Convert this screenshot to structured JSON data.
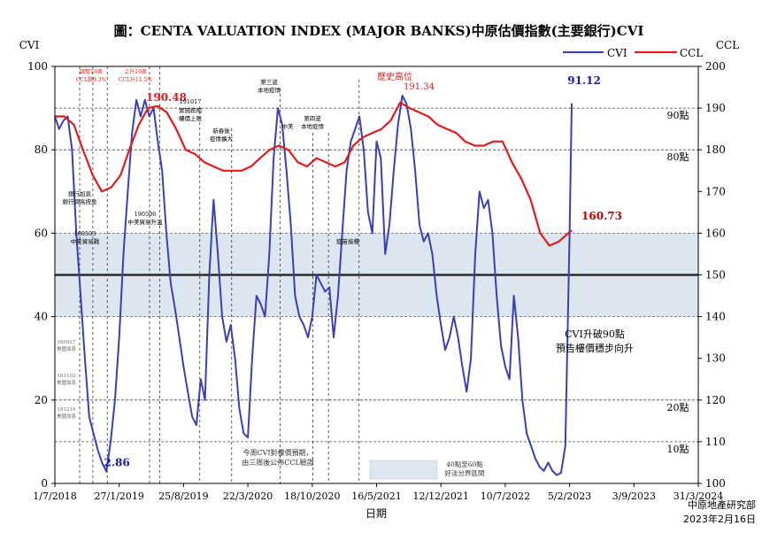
{
  "chart_data": {
    "type": "line",
    "title": "圖：CENTA VALUATION INDEX (MAJOR BANKS)中原估價指數(主要銀行)CVI",
    "xlabel": "日期",
    "ylabel_left": "CVI",
    "ylabel_right": "CCL",
    "ylim_left": [
      0,
      100
    ],
    "ylim_right": [
      100,
      200
    ],
    "yticks_left": [
      "0",
      "20",
      "40",
      "60",
      "80",
      "100"
    ],
    "yticks_right": [
      "100",
      "110",
      "120",
      "130",
      "140",
      "150",
      "160",
      "170",
      "180",
      "190",
      "200"
    ],
    "x_ticks": [
      "1/7/2018",
      "27/1/2019",
      "25/8/2019",
      "22/3/2020",
      "18/10/2020",
      "16/5/2021",
      "12/12/2021",
      "10/7/2022",
      "5/2/2023",
      "3/9/2023",
      "31/3/2024"
    ],
    "legend": {
      "position": "top-right",
      "cvi": "CVI",
      "ccl": "CCL"
    },
    "colors": {
      "cvi": "#3b3fb3",
      "ccl": "#e01b1b",
      "band": "#dde6f0",
      "midline": "#2b2b2b"
    },
    "band": {
      "from": 40,
      "to": 60,
      "midline": 50
    },
    "ref_lines": [
      {
        "value": 90,
        "label": "90點"
      },
      {
        "value": 80,
        "label": "80點"
      },
      {
        "value": 20,
        "label": "20點"
      },
      {
        "value": 10,
        "label": "10點"
      }
    ],
    "series": [
      {
        "name": "CVI",
        "axis": "left",
        "points": [
          [
            "2018-07-01",
            88
          ],
          [
            "2018-07-15",
            85
          ],
          [
            "2018-07-29",
            87
          ],
          [
            "2018-08-12",
            88
          ],
          [
            "2018-08-26",
            80
          ],
          [
            "2018-09-09",
            60
          ],
          [
            "2018-09-23",
            45
          ],
          [
            "2018-10-07",
            30
          ],
          [
            "2018-10-21",
            16
          ],
          [
            "2018-11-04",
            12
          ],
          [
            "2018-11-18",
            8
          ],
          [
            "2018-12-02",
            5
          ],
          [
            "2018-12-16",
            2.86
          ],
          [
            "2018-12-30",
            10
          ],
          [
            "2019-01-13",
            20
          ],
          [
            "2019-01-27",
            35
          ],
          [
            "2019-02-10",
            55
          ],
          [
            "2019-02-24",
            70
          ],
          [
            "2019-03-10",
            84
          ],
          [
            "2019-03-24",
            92
          ],
          [
            "2019-04-07",
            88
          ],
          [
            "2019-04-21",
            92
          ],
          [
            "2019-05-05",
            88
          ],
          [
            "2019-05-19",
            90
          ],
          [
            "2019-06-02",
            82
          ],
          [
            "2019-06-16",
            75
          ],
          [
            "2019-06-30",
            60
          ],
          [
            "2019-07-14",
            48
          ],
          [
            "2019-07-28",
            42
          ],
          [
            "2019-08-11",
            35
          ],
          [
            "2019-08-25",
            28
          ],
          [
            "2019-09-08",
            22
          ],
          [
            "2019-09-22",
            16
          ],
          [
            "2019-10-06",
            14
          ],
          [
            "2019-10-20",
            25
          ],
          [
            "2019-11-03",
            20
          ],
          [
            "2019-11-17",
            50
          ],
          [
            "2019-12-01",
            68
          ],
          [
            "2019-12-15",
            55
          ],
          [
            "2019-12-29",
            40
          ],
          [
            "2020-01-12",
            34
          ],
          [
            "2020-01-26",
            38
          ],
          [
            "2020-02-09",
            30
          ],
          [
            "2020-02-23",
            18
          ],
          [
            "2020-03-08",
            12
          ],
          [
            "2020-03-22",
            11
          ],
          [
            "2020-04-05",
            30
          ],
          [
            "2020-04-19",
            45
          ],
          [
            "2020-05-03",
            43
          ],
          [
            "2020-05-17",
            40
          ],
          [
            "2020-05-31",
            55
          ],
          [
            "2020-06-14",
            78
          ],
          [
            "2020-06-28",
            90
          ],
          [
            "2020-07-12",
            86
          ],
          [
            "2020-07-26",
            75
          ],
          [
            "2020-08-09",
            62
          ],
          [
            "2020-08-23",
            45
          ],
          [
            "2020-09-06",
            40
          ],
          [
            "2020-09-20",
            38
          ],
          [
            "2020-10-04",
            35
          ],
          [
            "2020-10-18",
            40
          ],
          [
            "2020-11-01",
            50
          ],
          [
            "2020-11-15",
            48
          ],
          [
            "2020-11-29",
            46
          ],
          [
            "2020-12-13",
            47
          ],
          [
            "2020-12-27",
            35
          ],
          [
            "2021-01-10",
            45
          ],
          [
            "2021-01-24",
            60
          ],
          [
            "2021-02-07",
            75
          ],
          [
            "2021-02-21",
            82
          ],
          [
            "2021-03-07",
            85
          ],
          [
            "2021-03-21",
            88
          ],
          [
            "2021-04-04",
            80
          ],
          [
            "2021-04-18",
            65
          ],
          [
            "2021-05-02",
            60
          ],
          [
            "2021-05-16",
            82
          ],
          [
            "2021-05-30",
            78
          ],
          [
            "2021-06-13",
            55
          ],
          [
            "2021-06-27",
            62
          ],
          [
            "2021-07-11",
            75
          ],
          [
            "2021-07-25",
            86
          ],
          [
            "2021-08-08",
            93
          ],
          [
            "2021-08-22",
            91
          ],
          [
            "2021-09-05",
            85
          ],
          [
            "2021-09-19",
            75
          ],
          [
            "2021-10-03",
            62
          ],
          [
            "2021-10-17",
            58
          ],
          [
            "2021-10-31",
            60
          ],
          [
            "2021-11-14",
            55
          ],
          [
            "2021-11-28",
            45
          ],
          [
            "2021-12-12",
            38
          ],
          [
            "2021-12-26",
            32
          ],
          [
            "2022-01-09",
            35
          ],
          [
            "2022-01-23",
            40
          ],
          [
            "2022-02-06",
            35
          ],
          [
            "2022-02-20",
            28
          ],
          [
            "2022-03-06",
            22
          ],
          [
            "2022-03-20",
            30
          ],
          [
            "2022-04-03",
            55
          ],
          [
            "2022-04-17",
            70
          ],
          [
            "2022-05-01",
            66
          ],
          [
            "2022-05-15",
            68
          ],
          [
            "2022-05-29",
            60
          ],
          [
            "2022-06-12",
            45
          ],
          [
            "2022-06-26",
            33
          ],
          [
            "2022-07-10",
            28
          ],
          [
            "2022-07-24",
            25
          ],
          [
            "2022-08-07",
            45
          ],
          [
            "2022-08-21",
            35
          ],
          [
            "2022-09-04",
            20
          ],
          [
            "2022-09-18",
            12
          ],
          [
            "2022-10-02",
            9
          ],
          [
            "2022-10-16",
            6
          ],
          [
            "2022-10-30",
            4
          ],
          [
            "2022-11-13",
            3
          ],
          [
            "2022-11-27",
            5
          ],
          [
            "2022-12-11",
            3
          ],
          [
            "2022-12-25",
            2
          ],
          [
            "2023-01-08",
            2.5
          ],
          [
            "2023-01-22",
            9
          ],
          [
            "2023-02-05",
            60
          ],
          [
            "2023-02-12",
            91.12
          ]
        ]
      },
      {
        "name": "CCL",
        "axis": "right",
        "points": [
          [
            "2018-07-01",
            188
          ],
          [
            "2018-08-01",
            188
          ],
          [
            "2018-09-01",
            186
          ],
          [
            "2018-10-01",
            180
          ],
          [
            "2018-11-01",
            174
          ],
          [
            "2018-12-01",
            170
          ],
          [
            "2019-01-01",
            171
          ],
          [
            "2019-02-01",
            174
          ],
          [
            "2019-03-01",
            180
          ],
          [
            "2019-04-01",
            186
          ],
          [
            "2019-05-01",
            190
          ],
          [
            "2019-06-01",
            190.48
          ],
          [
            "2019-07-01",
            189
          ],
          [
            "2019-08-01",
            185
          ],
          [
            "2019-09-01",
            180
          ],
          [
            "2019-10-01",
            179
          ],
          [
            "2019-11-01",
            177
          ],
          [
            "2019-12-01",
            176
          ],
          [
            "2020-01-01",
            175
          ],
          [
            "2020-02-01",
            175
          ],
          [
            "2020-03-01",
            175
          ],
          [
            "2020-04-01",
            176
          ],
          [
            "2020-05-01",
            178
          ],
          [
            "2020-06-01",
            180
          ],
          [
            "2020-07-01",
            181
          ],
          [
            "2020-08-01",
            180
          ],
          [
            "2020-09-01",
            177
          ],
          [
            "2020-10-01",
            176
          ],
          [
            "2020-11-01",
            178
          ],
          [
            "2020-12-01",
            177
          ],
          [
            "2021-01-01",
            176
          ],
          [
            "2021-02-01",
            177
          ],
          [
            "2021-03-01",
            181
          ],
          [
            "2021-04-01",
            183
          ],
          [
            "2021-05-01",
            184
          ],
          [
            "2021-06-01",
            185
          ],
          [
            "2021-07-01",
            187
          ],
          [
            "2021-08-01",
            191.34
          ],
          [
            "2021-09-01",
            190
          ],
          [
            "2021-10-01",
            189
          ],
          [
            "2021-11-01",
            188
          ],
          [
            "2021-12-01",
            186
          ],
          [
            "2022-01-01",
            185
          ],
          [
            "2022-02-01",
            184
          ],
          [
            "2022-03-01",
            182
          ],
          [
            "2022-04-01",
            181
          ],
          [
            "2022-05-01",
            181
          ],
          [
            "2022-06-01",
            182
          ],
          [
            "2022-07-01",
            182
          ],
          [
            "2022-08-01",
            177
          ],
          [
            "2022-09-01",
            173
          ],
          [
            "2022-10-01",
            168
          ],
          [
            "2022-11-01",
            160
          ],
          [
            "2022-12-01",
            157
          ],
          [
            "2023-01-01",
            158
          ],
          [
            "2023-02-12",
            160.73
          ]
        ]
      }
    ],
    "value_labels": [
      {
        "text": "2.86",
        "series": "CVI",
        "x": "2018-12-16",
        "y": 2.86,
        "color": "#1a1aa0"
      },
      {
        "text": "91.12",
        "series": "CVI",
        "x": "2023-02-12",
        "y": 91.12,
        "color": "#1a1aa0"
      },
      {
        "text": "190.48",
        "series": "CCL",
        "x": "2019-06-01",
        "y": 190.48,
        "color": "#e01b1b"
      },
      {
        "text": "160.73",
        "series": "CCL",
        "x": "2023-02-12",
        "y": 160.73,
        "color": "#c00000"
      }
    ],
    "annotations": [
      {
        "text": "歷史高位",
        "color": "#e01b1b"
      },
      {
        "text": "191.34",
        "color": "#e01b1b"
      },
      {
        "text": "CVI升破90點"
      },
      {
        "text": "預告樓價穩步向升"
      },
      {
        "text": "今周CVI對樓價預期，"
      },
      {
        "text": "由三周後公佈CCL驗證"
      },
      {
        "text": "40點至60點"
      },
      {
        "text": "好淡分界區間"
      },
      {
        "text": "調整19周",
        "color": "#e01b1b"
      },
      {
        "text": "CCL跌9.3%",
        "color": "#e01b1b"
      },
      {
        "text": "上升19周",
        "color": "#e01b1b"
      },
      {
        "text": "CCL升11.5%",
        "color": "#e01b1b"
      },
      {
        "text": "191017"
      },
      {
        "text": "實施按揭"
      },
      {
        "text": "樓價上限"
      },
      {
        "text": "新春後"
      },
      {
        "text": "疫情擴大"
      },
      {
        "text": "第三波"
      },
      {
        "text": "本地疫情"
      },
      {
        "text": "中美"
      },
      {
        "text": "第四波"
      },
      {
        "text": "本地疫情"
      },
      {
        "text": "疫苗接種"
      },
      {
        "text": "180503"
      },
      {
        "text": "中美貿易戰"
      },
      {
        "text": "190506"
      },
      {
        "text": "中美貿易升溫"
      },
      {
        "text": "181102"
      },
      {
        "text": "美國加息"
      },
      {
        "text": "181219"
      },
      {
        "text": "美國加息"
      },
      {
        "text": "180927"
      },
      {
        "text": "美國加息"
      },
      {
        "text": "銀行加息"
      },
      {
        "text": "銀行調高按息"
      }
    ],
    "source": "中原地產研究部",
    "date": "2023年2月16日"
  }
}
